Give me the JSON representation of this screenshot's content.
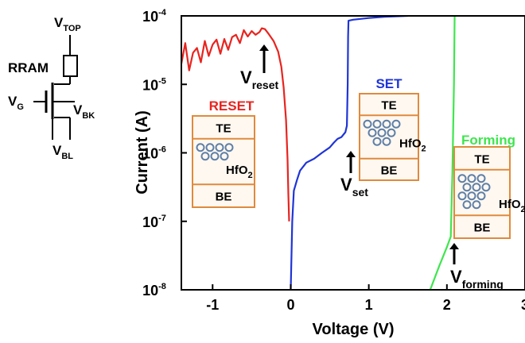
{
  "circuit": {
    "top_label": {
      "main": "V",
      "sub": "TOP"
    },
    "rram_label": "RRAM",
    "gate_label": {
      "main": "V",
      "sub": "G"
    },
    "bulk_label": {
      "main": "V",
      "sub": "BK"
    },
    "bottom_label": {
      "main": "V",
      "sub": "BL"
    }
  },
  "chart_data": {
    "type": "line",
    "xlabel": "Voltage (V)",
    "ylabel": "Current (A)",
    "xlim": [
      -1.4,
      3.0
    ],
    "ylim_log10": [
      -8,
      -4
    ],
    "y_scale": "log",
    "grid": false,
    "x_ticks": [
      -1,
      0,
      1,
      2,
      3
    ],
    "x_tick_labels": [
      "-1",
      "0",
      "1",
      "2",
      "3"
    ],
    "y_ticks": [
      {
        "value": 1e-08,
        "base": "10",
        "exp": "-8"
      },
      {
        "value": 1e-07,
        "base": "10",
        "exp": "-7"
      },
      {
        "value": 1e-06,
        "base": "10",
        "exp": "-6"
      },
      {
        "value": 1e-05,
        "base": "10",
        "exp": "-5"
      },
      {
        "value": 0.0001,
        "base": "10",
        "exp": "-4"
      }
    ],
    "series": [
      {
        "name": "RESET",
        "color": "#e8241f",
        "points": [
          [
            -1.4,
            2e-05
          ],
          [
            -1.35,
            4e-05
          ],
          [
            -1.3,
            1.6e-05
          ],
          [
            -1.25,
            2.9e-05
          ],
          [
            -1.2,
            3.4e-05
          ],
          [
            -1.15,
            2.1e-05
          ],
          [
            -1.1,
            4.3e-05
          ],
          [
            -1.05,
            2.6e-05
          ],
          [
            -1.0,
            3.8e-05
          ],
          [
            -0.95,
            4.5e-05
          ],
          [
            -0.9,
            2.8e-05
          ],
          [
            -0.85,
            4.6e-05
          ],
          [
            -0.8,
            3.2e-05
          ],
          [
            -0.75,
            4.9e-05
          ],
          [
            -0.7,
            5.3e-05
          ],
          [
            -0.65,
            4e-05
          ],
          [
            -0.6,
            6.2e-05
          ],
          [
            -0.55,
            5e-05
          ],
          [
            -0.5,
            6e-05
          ],
          [
            -0.45,
            5.3e-05
          ],
          [
            -0.4,
            5.8e-05
          ],
          [
            -0.37,
            6.6e-05
          ],
          [
            -0.33,
            6.4e-05
          ],
          [
            -0.28,
            5.4e-05
          ],
          [
            -0.22,
            4.3e-05
          ],
          [
            -0.16,
            3e-05
          ],
          [
            -0.12,
            1.8e-05
          ],
          [
            -0.09,
            9e-06
          ],
          [
            -0.06,
            3e-06
          ],
          [
            -0.04,
            8e-07
          ],
          [
            -0.03,
            2.5e-07
          ],
          [
            -0.02,
            1e-07
          ]
        ]
      },
      {
        "name": "SET",
        "color": "#1f35d6",
        "points": [
          [
            0.0,
            1e-08
          ],
          [
            0.01,
            3e-08
          ],
          [
            0.02,
            1e-07
          ],
          [
            0.04,
            2.8e-07
          ],
          [
            0.08,
            4e-07
          ],
          [
            0.12,
            5.5e-07
          ],
          [
            0.2,
            7.2e-07
          ],
          [
            0.3,
            8.2e-07
          ],
          [
            0.4,
            1e-06
          ],
          [
            0.5,
            1.2e-06
          ],
          [
            0.55,
            1.4e-06
          ],
          [
            0.6,
            1.6e-06
          ],
          [
            0.65,
            1.7e-06
          ],
          [
            0.7,
            2e-06
          ],
          [
            0.72,
            2.5e-06
          ],
          [
            0.73,
            1e-05
          ],
          [
            0.735,
            5e-05
          ],
          [
            0.74,
            8.5e-05
          ],
          [
            0.8,
            8.8e-05
          ],
          [
            1.0,
            9.3e-05
          ],
          [
            1.2,
            9.7e-05
          ],
          [
            1.5,
            0.0001
          ]
        ]
      },
      {
        "name": "Forming",
        "color": "#3ee64e",
        "points": [
          [
            1.7,
            6e-09
          ],
          [
            1.8,
            1.1e-08
          ],
          [
            1.9,
            2.2e-08
          ],
          [
            2.0,
            4.2e-08
          ],
          [
            2.05,
            6e-08
          ],
          [
            2.07,
            5e-07
          ],
          [
            2.09,
            1e-05
          ],
          [
            2.1,
            0.000115
          ],
          [
            2.5,
            0.00012
          ],
          [
            3.0,
            0.000122
          ]
        ]
      }
    ],
    "annotations": [
      {
        "main": "V",
        "sub": "reset",
        "color": "#000000"
      },
      {
        "main": "V",
        "sub": "set",
        "color": "#000000"
      },
      {
        "main": "V",
        "sub": "forming",
        "color": "#000000"
      }
    ],
    "insets": [
      {
        "title": "RESET",
        "title_color": "#e8241f",
        "top": "TE",
        "bottom": "BE",
        "oxide_main": "HfO",
        "oxide_sub": "2"
      },
      {
        "title": "SET",
        "title_color": "#1f35d6",
        "top": "TE",
        "bottom": "BE",
        "oxide_main": "HfO",
        "oxide_sub": "2"
      },
      {
        "title": "Forming",
        "title_color": "#3ee64e",
        "top": "TE",
        "bottom": "BE",
        "oxide_main": "HfO",
        "oxide_sub": "2"
      }
    ],
    "inset_style": {
      "box_color": "#e08a3c",
      "fill": "#fff8f0",
      "vacancy_color": "#5d7fa8"
    }
  }
}
